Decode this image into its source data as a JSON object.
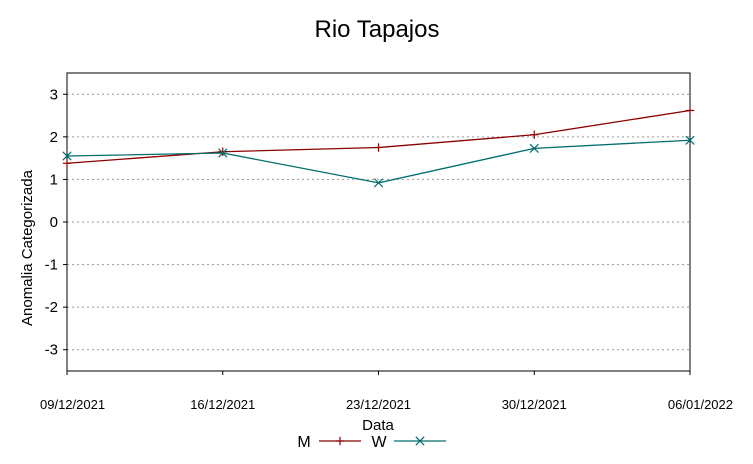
{
  "chart_data": {
    "type": "line",
    "title": "Rio Tapajos",
    "xlabel": "Data",
    "ylabel": "Anomalia Categorizada",
    "categories": [
      "09/12/2021",
      "16/12/2021",
      "23/12/2021",
      "30/12/2021",
      "06/01/2022"
    ],
    "ylim": [
      -3.5,
      3.5
    ],
    "yticks": [
      -3,
      -2,
      -1,
      0,
      1,
      2,
      3
    ],
    "ytick_labels": [
      "-3",
      "-2",
      "-1",
      "0",
      "1",
      "2",
      "3"
    ],
    "grid": "horizontal-dotted",
    "legend_position": "bottom-center",
    "series": [
      {
        "name": "M",
        "values": [
          1.38,
          1.65,
          1.75,
          2.05,
          2.62
        ],
        "color": "#8b0000",
        "marker": "plus"
      },
      {
        "name": "W",
        "values": [
          1.55,
          1.62,
          0.92,
          1.73,
          1.92
        ],
        "color": "#006d6d",
        "marker": "cross"
      }
    ]
  }
}
